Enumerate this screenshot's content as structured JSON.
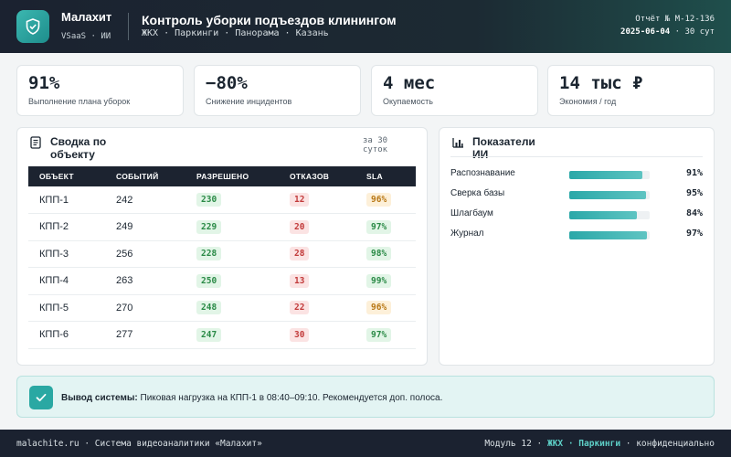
{
  "header": {
    "brand": "Малахит",
    "brand_sub": "VSaaS · ИИ",
    "title": "Контроль уборки подъездов клинингом",
    "subtitle": "ЖКХ · Паркинги · Панорама · Казань",
    "report_no": "Отчёт № M-12-136",
    "report_date": "2025-06-04",
    "report_period": " · 30 сут"
  },
  "kpis": [
    {
      "value": "91%",
      "label": "Выполнение плана уборок"
    },
    {
      "value": "−80%",
      "label": "Снижение инцидентов"
    },
    {
      "value": "4 мес",
      "label": "Окупаемость"
    },
    {
      "value": "14 тыс ₽",
      "label": "Экономия / год"
    }
  ],
  "summary": {
    "title": "Сводка по объекту",
    "period": "за 30 суток",
    "columns": [
      "ОБЪЕКТ",
      "СОБЫТИЙ",
      "РАЗРЕШЕНО",
      "ОТКАЗОВ",
      "SLA"
    ],
    "rows": [
      {
        "object": "КПП-1",
        "events": "242",
        "allowed": "230",
        "denied": "12",
        "sla": "96%",
        "sla_status": "amber"
      },
      {
        "object": "КПП-2",
        "events": "249",
        "allowed": "229",
        "denied": "20",
        "sla": "97%",
        "sla_status": "green"
      },
      {
        "object": "КПП-3",
        "events": "256",
        "allowed": "228",
        "denied": "28",
        "sla": "98%",
        "sla_status": "green"
      },
      {
        "object": "КПП-4",
        "events": "263",
        "allowed": "250",
        "denied": "13",
        "sla": "99%",
        "sla_status": "green"
      },
      {
        "object": "КПП-5",
        "events": "270",
        "allowed": "248",
        "denied": "22",
        "sla": "96%",
        "sla_status": "amber"
      },
      {
        "object": "КПП-6",
        "events": "277",
        "allowed": "247",
        "denied": "30",
        "sla": "97%",
        "sla_status": "green"
      }
    ]
  },
  "ai": {
    "title": "Показатели ИИ",
    "metrics": [
      {
        "name": "Распознавание",
        "value": "91%",
        "level": 0.91
      },
      {
        "name": "Сверка базы",
        "value": "95%",
        "level": 0.95
      },
      {
        "name": "Шлагбаум",
        "value": "84%",
        "level": 0.84
      },
      {
        "name": "Журнал",
        "value": "97%",
        "level": 0.97
      }
    ]
  },
  "conclusion": {
    "label": "Вывод системы:",
    "text": " Пиковая нагрузка на КПП-1 в 08:40–09:10. Рекомендуется доп. полоса."
  },
  "footer": {
    "left": "malachite.ru · Система видеоаналитики «Малахит»",
    "module": "Модуль 12 · ",
    "module_tag": "ЖКХ · Паркинги",
    "confidential": " · конфиденциально"
  },
  "colors": {
    "accent": "#2aa8a3",
    "dark": "#1b2230",
    "ok": "#2a8a46",
    "bad": "#c23a3a",
    "warn": "#b87714"
  }
}
